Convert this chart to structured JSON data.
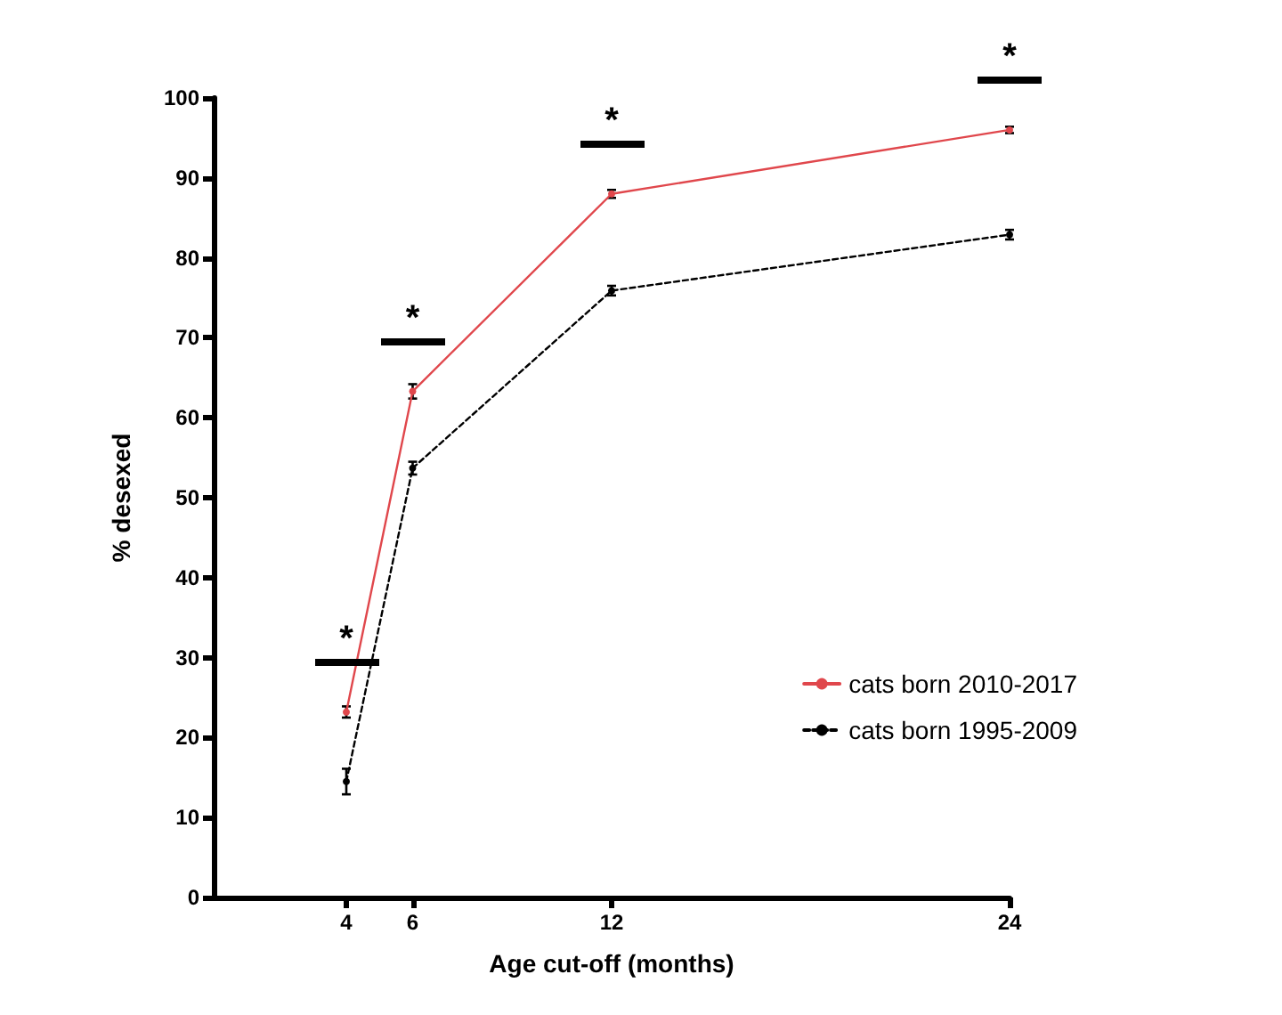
{
  "chart_data": {
    "type": "line",
    "xlabel": "Age cut-off (months)",
    "ylabel": "% desexed",
    "x": [
      4,
      6,
      12,
      24
    ],
    "series": [
      {
        "name": "cats born 2010-2017",
        "color": "#e0474c",
        "values": [
          23.2,
          63.3,
          88,
          96
        ],
        "errors": [
          0.7,
          0.9,
          0.5,
          0.4
        ],
        "line_style": "solid"
      },
      {
        "name": "cats born 1995-2009",
        "color": "#000000",
        "values": [
          14.5,
          53.7,
          75.9,
          82.9
        ],
        "errors": [
          1.6,
          0.8,
          0.6,
          0.6
        ],
        "line_style": "dotted"
      }
    ],
    "xlim": [
      0,
      24
    ],
    "xticks": [
      4,
      6,
      12,
      24
    ],
    "ylim": [
      0,
      100
    ],
    "yticks": [
      0,
      10,
      20,
      30,
      40,
      50,
      60,
      70,
      80,
      90,
      100
    ],
    "grid": false,
    "legend": "right",
    "marker": "circle",
    "annotations": [
      {
        "text": "*",
        "x": 4,
        "y": 23.2
      },
      {
        "text": "*",
        "x": 6,
        "y": 63.3
      },
      {
        "text": "*",
        "x": 12,
        "y": 88
      },
      {
        "text": "*",
        "x": 24,
        "y": 96
      }
    ]
  }
}
